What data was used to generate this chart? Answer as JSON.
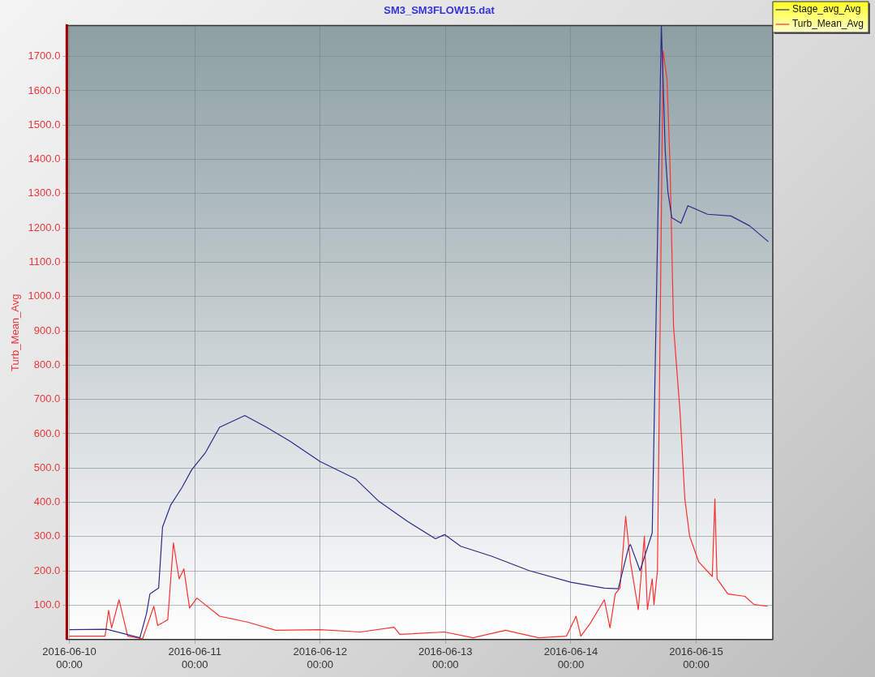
{
  "chart_data": {
    "type": "line",
    "title": "SM3_SM3FLOW15.dat",
    "ylabel": "Turb_Mean_Avg",
    "xlim": [
      "2016-06-09T23:30",
      "2016-06-15T14:40"
    ],
    "ylim": [
      0,
      1790
    ],
    "xticks": [
      {
        "value": "2016-06-10T00:00",
        "label": "2016-06-10 00:00"
      },
      {
        "value": "2016-06-11T00:00",
        "label": "2016-06-11 00:00"
      },
      {
        "value": "2016-06-12T00:00",
        "label": "2016-06-12 00:00"
      },
      {
        "value": "2016-06-13T00:00",
        "label": "2016-06-13 00:00"
      },
      {
        "value": "2016-06-14T00:00",
        "label": "2016-06-14 00:00"
      },
      {
        "value": "2016-06-15T00:00",
        "label": "2016-06-15 00:00"
      }
    ],
    "yticks": [
      {
        "value": 100,
        "label": "100.0"
      },
      {
        "value": 200,
        "label": "200.0"
      },
      {
        "value": 300,
        "label": "300.0"
      },
      {
        "value": 400,
        "label": "400.0"
      },
      {
        "value": 500,
        "label": "500.0"
      },
      {
        "value": 600,
        "label": "600.0"
      },
      {
        "value": 700,
        "label": "700.0"
      },
      {
        "value": 800,
        "label": "800.0"
      },
      {
        "value": 900,
        "label": "900.0"
      },
      {
        "value": 1000,
        "label": "1000.0"
      },
      {
        "value": 1100,
        "label": "1100.0"
      },
      {
        "value": 1200,
        "label": "1200.0"
      },
      {
        "value": 1300,
        "label": "1300.0"
      },
      {
        "value": 1400,
        "label": "1400.0"
      },
      {
        "value": 1500,
        "label": "1500.0"
      },
      {
        "value": 1600,
        "label": "1600.0"
      },
      {
        "value": 1700,
        "label": "1700.0"
      }
    ],
    "grid": true,
    "legend": "right",
    "marker": "none",
    "line_style": "solid",
    "series": [
      {
        "name": "Stage_avg_Avg",
        "color": "#2b2b8c",
        "x": [
          "2016-06-10T00:00",
          "2016-06-10T07:10",
          "2016-06-10T13:30",
          "2016-06-10T14:45",
          "2016-06-10T15:25",
          "2016-06-10T17:05",
          "2016-06-10T17:50",
          "2016-06-10T19:25",
          "2016-06-10T21:35",
          "2016-06-10T23:25",
          "2016-06-11T02:00",
          "2016-06-11T04:45",
          "2016-06-11T09:35",
          "2016-06-11T13:45",
          "2016-06-11T18:15",
          "2016-06-12T00:00",
          "2016-06-12T06:50",
          "2016-06-12T11:15",
          "2016-06-12T16:40",
          "2016-06-12T22:05",
          "2016-06-12T23:50",
          "2016-06-13T02:55",
          "2016-06-13T08:50",
          "2016-06-13T16:00",
          "2016-06-14T00:00",
          "2016-06-14T06:25",
          "2016-06-14T09:05",
          "2016-06-14T11:05",
          "2016-06-14T11:25",
          "2016-06-14T13:15",
          "2016-06-14T15:35",
          "2016-06-14T17:20",
          "2016-06-14T18:05",
          "2016-06-14T18:35",
          "2016-06-14T19:20",
          "2016-06-14T21:05",
          "2016-06-14T22:25",
          "2016-06-15T02:10",
          "2016-06-15T06:40",
          "2016-06-15T10:15",
          "2016-06-15T13:50"
        ],
        "values": [
          29,
          30,
          5,
          75,
          133,
          150,
          328,
          393,
          444,
          495,
          544,
          619,
          653,
          619,
          578,
          519,
          468,
          403,
          345,
          294,
          306,
          272,
          243,
          201,
          167,
          150,
          148,
          270,
          277,
          201,
          311,
          1790,
          1422,
          1306,
          1230,
          1214,
          1265,
          1240,
          1235,
          1206,
          1160
        ]
      },
      {
        "name": "Turb_Mean_Avg",
        "color": "#ff3030",
        "x": [
          "2016-06-10T00:00",
          "2016-06-10T06:50",
          "2016-06-10T07:30",
          "2016-06-10T08:05",
          "2016-06-10T09:30",
          "2016-06-10T10:15",
          "2016-06-10T11:10",
          "2016-06-10T14:00",
          "2016-06-10T16:10",
          "2016-06-10T16:55",
          "2016-06-10T18:50",
          "2016-06-10T19:55",
          "2016-06-10T21:00",
          "2016-06-10T21:55",
          "2016-06-10T23:00",
          "2016-06-11T00:25",
          "2016-06-11T04:45",
          "2016-06-11T10:05",
          "2016-06-11T15:30",
          "2016-06-12T00:00",
          "2016-06-12T07:40",
          "2016-06-12T14:10",
          "2016-06-12T15:15",
          "2016-06-12T23:50",
          "2016-06-13T05:15",
          "2016-06-13T11:30",
          "2016-06-13T17:50",
          "2016-06-13T23:10",
          "2016-06-14T01:00",
          "2016-06-14T01:55",
          "2016-06-14T03:40",
          "2016-06-14T06:25",
          "2016-06-14T07:30",
          "2016-06-14T08:30",
          "2016-06-14T09:25",
          "2016-06-14T10:30",
          "2016-06-14T11:25",
          "2016-06-14T12:55",
          "2016-06-14T14:05",
          "2016-06-14T14:40",
          "2016-06-14T15:35",
          "2016-06-14T15:55",
          "2016-06-14T16:35",
          "2016-06-14T17:10",
          "2016-06-14T17:40",
          "2016-06-14T18:25",
          "2016-06-14T19:00",
          "2016-06-14T19:40",
          "2016-06-14T20:55",
          "2016-06-14T21:50",
          "2016-06-14T22:45",
          "2016-06-15T00:30",
          "2016-06-15T03:05",
          "2016-06-15T03:35",
          "2016-06-15T04:00",
          "2016-06-15T06:05",
          "2016-06-15T09:20",
          "2016-06-15T11:05",
          "2016-06-15T13:40"
        ],
        "values": [
          10,
          10,
          85,
          34,
          116,
          68,
          10,
          2,
          97,
          41,
          58,
          282,
          177,
          206,
          92,
          121,
          68,
          51,
          27,
          29,
          22,
          36,
          15,
          22,
          5,
          27,
          5,
          10,
          68,
          10,
          46,
          116,
          34,
          133,
          150,
          359,
          226,
          87,
          301,
          87,
          177,
          102,
          200,
          1000,
          1716,
          1633,
          1381,
          913,
          663,
          410,
          301,
          226,
          184,
          410,
          177,
          133,
          126,
          102,
          97
        ]
      }
    ]
  }
}
